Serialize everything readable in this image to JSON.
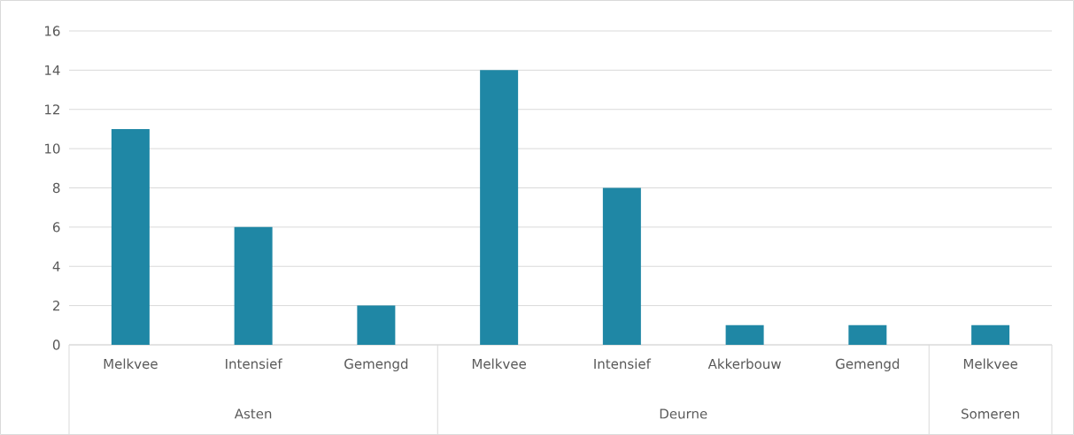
{
  "chart_data": {
    "type": "bar",
    "categories": [
      "Melkvee",
      "Intensief",
      "Gemengd",
      "Melkvee",
      "Intensief",
      "Akkerbouw",
      "Gemengd",
      "Melkvee"
    ],
    "values": [
      11,
      6,
      2,
      14,
      8,
      1,
      1,
      1
    ],
    "color": "#1f87a5",
    "ylim": [
      0,
      16
    ],
    "yticks": [
      0,
      2,
      4,
      6,
      8,
      10,
      12,
      14,
      16
    ],
    "grid": "y",
    "annotations": [
      "Asten",
      "Deurne",
      "Someren"
    ]
  }
}
